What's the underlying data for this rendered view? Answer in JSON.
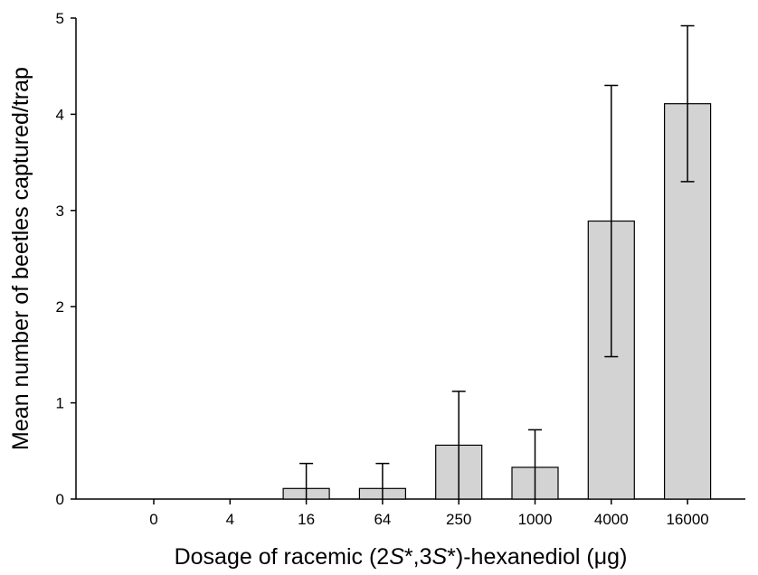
{
  "chart_data": {
    "type": "bar",
    "categories": [
      "0",
      "4",
      "16",
      "64",
      "250",
      "1000",
      "4000",
      "16000"
    ],
    "values": [
      0,
      0,
      0.11,
      0.11,
      0.56,
      0.33,
      2.89,
      4.11
    ],
    "errors": [
      0,
      0,
      0.26,
      0.26,
      0.56,
      0.39,
      1.41,
      0.81
    ],
    "xlabel_parts": [
      {
        "text": "Dosage of racemic (2",
        "style": "normal"
      },
      {
        "text": "S",
        "style": "italic"
      },
      {
        "text": "*,3",
        "style": "normal"
      },
      {
        "text": "S",
        "style": "italic"
      },
      {
        "text": "*)-hexanediol (",
        "style": "normal"
      },
      {
        "text": "μ",
        "style": "normal"
      },
      {
        "text": "g)",
        "style": "normal"
      }
    ],
    "ylabel": "Mean number of beetles captured/trap",
    "ylim": [
      0,
      5
    ],
    "yticks": [
      "0",
      "1",
      "2",
      "3",
      "4",
      "5"
    ],
    "grid": false,
    "colors": {
      "bar_fill": "#d3d3d3",
      "bar_stroke": "#000000"
    }
  }
}
